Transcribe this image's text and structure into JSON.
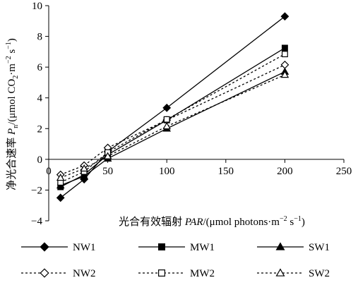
{
  "chart_data": {
    "type": "line",
    "xlabel": {
      "prefix": "光合有效辐射 ",
      "italic": "PAR",
      "rest": "/(μmol photons·m",
      "sup": "−2",
      "end": " s",
      "sup2": "−1",
      "close": ")"
    },
    "ylabel": {
      "prefix": "净光合速率 ",
      "italic": "P",
      "sub": "n",
      "rest": "/(μmol CO",
      "sub2": "2",
      "rest2": "·m",
      "sup": "−2",
      "end": " s",
      "sup2": "−1",
      "close": ")"
    },
    "xlim": [
      0,
      250
    ],
    "ylim": [
      -4,
      10
    ],
    "x_ticks": [
      0,
      50,
      100,
      150,
      200,
      250
    ],
    "y_ticks": [
      -4,
      -2,
      0,
      2,
      4,
      6,
      8,
      10
    ],
    "x_tick_labels": [
      "0",
      "50",
      "100",
      "150",
      "200",
      "250"
    ],
    "y_tick_labels": [
      "−4",
      "−2",
      "0",
      "2",
      "4",
      "6",
      "8",
      "10"
    ],
    "grid": false,
    "legend_position": "bottom",
    "x": [
      10,
      30,
      50,
      100,
      200
    ],
    "series": [
      {
        "name": "NW1",
        "values": [
          -2.5,
          -1.3,
          0.5,
          3.35,
          9.3
        ],
        "dash": "solid",
        "marker": "diamond-filled"
      },
      {
        "name": "MW1",
        "values": [
          -1.8,
          -1.0,
          0.3,
          2.55,
          7.25
        ],
        "dash": "solid",
        "marker": "square-filled"
      },
      {
        "name": "SW1",
        "values": [
          -1.7,
          -1.1,
          0.05,
          2.0,
          5.7
        ],
        "dash": "solid",
        "marker": "triangle-filled"
      },
      {
        "name": "NW2",
        "values": [
          -1.0,
          -0.4,
          0.75,
          2.55,
          6.15
        ],
        "dash": "dotted",
        "marker": "diamond-open"
      },
      {
        "name": "MW2",
        "values": [
          -1.5,
          -0.8,
          0.45,
          2.6,
          6.85
        ],
        "dash": "dotted",
        "marker": "square-open"
      },
      {
        "name": "SW2",
        "values": [
          -1.2,
          -0.6,
          0.2,
          2.15,
          5.5
        ],
        "dash": "dotted",
        "marker": "triangle-open"
      }
    ]
  }
}
